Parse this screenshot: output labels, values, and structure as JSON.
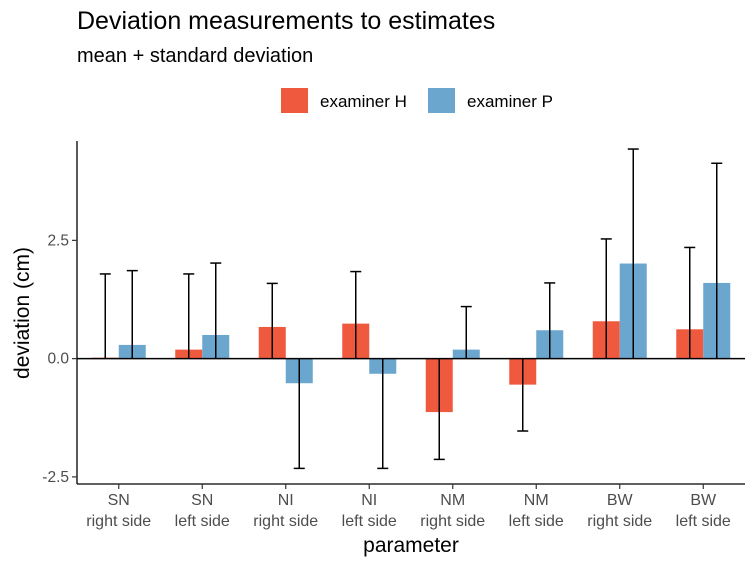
{
  "chart_data": {
    "type": "bar",
    "title": "Deviation measurements to estimates",
    "subtitle": "mean + standard deviation",
    "xlabel": "parameter",
    "ylabel": "deviation (cm)",
    "ylim": [
      -2.65,
      4.6
    ],
    "yticks": [
      -2.5,
      0.0,
      2.5
    ],
    "ytick_labels": [
      "-2.5",
      "0.0",
      "2.5"
    ],
    "categories": [
      [
        "SN",
        "right side"
      ],
      [
        "SN",
        "left side"
      ],
      [
        "NI",
        "right side"
      ],
      [
        "NI",
        "left side"
      ],
      [
        "NM",
        "right side"
      ],
      [
        "NM",
        "left side"
      ],
      [
        "BW",
        "right side"
      ],
      [
        "BW",
        "left side"
      ]
    ],
    "legend": {
      "position": "top",
      "entries": [
        "examiner H",
        "examiner P"
      ]
    },
    "series": [
      {
        "name": "examiner H",
        "color": "#EF5A3F",
        "values": [
          0.02,
          0.19,
          0.67,
          0.74,
          -1.13,
          -0.55,
          0.79,
          0.62
        ],
        "sd": [
          1.77,
          1.6,
          0.92,
          1.1,
          1.0,
          0.98,
          1.74,
          1.73
        ]
      },
      {
        "name": "examiner P",
        "color": "#6BA6CE",
        "values": [
          0.29,
          0.5,
          -0.52,
          -0.32,
          0.19,
          0.6,
          2.01,
          1.6
        ],
        "sd": [
          1.57,
          1.52,
          1.8,
          2.0,
          0.91,
          1.0,
          2.42,
          2.53
        ]
      }
    ]
  }
}
